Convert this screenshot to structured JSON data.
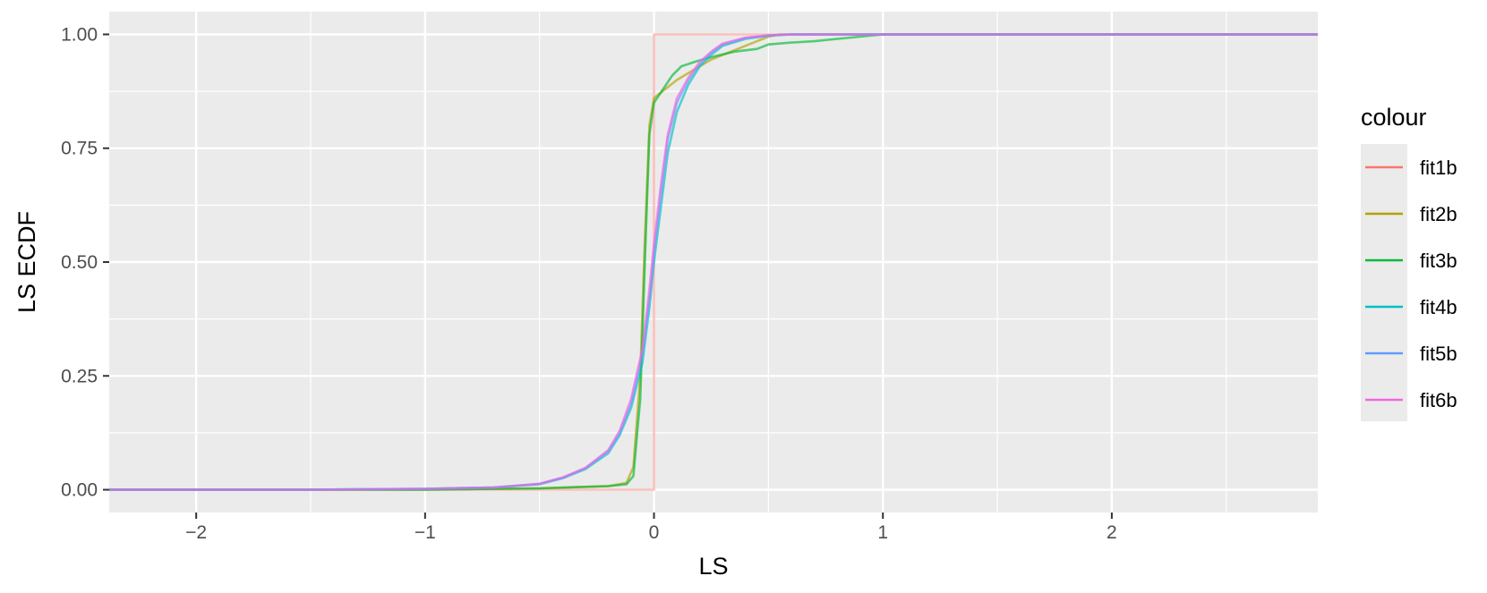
{
  "chart_data": {
    "type": "line",
    "title": "",
    "xlabel": "LS",
    "ylabel": "LS ECDF",
    "xlim": [
      -2.38,
      2.9
    ],
    "ylim": [
      -0.05,
      1.05
    ],
    "x_ticks": [
      -2,
      -1,
      0,
      1,
      2
    ],
    "x_tick_labels": [
      "−2",
      "−1",
      "0",
      "1",
      "2"
    ],
    "y_ticks": [
      0,
      0.25,
      0.5,
      0.75,
      1
    ],
    "y_tick_labels": [
      "0.00",
      "0.25",
      "0.50",
      "0.75",
      "1.00"
    ],
    "grid": true,
    "legend": {
      "title": "colour",
      "position": "right"
    },
    "series": [
      {
        "name": "fit1b",
        "color": "#F8766D",
        "step": true,
        "points": [
          [
            -2.38,
            0
          ],
          [
            0.0,
            0
          ],
          [
            0.0,
            0.8
          ],
          [
            0.0,
            1.0
          ],
          [
            2.9,
            1.0
          ]
        ]
      },
      {
        "name": "fit2b",
        "color": "#B79F00",
        "step": false,
        "points": [
          [
            -2.38,
            0
          ],
          [
            -1.0,
            0.0
          ],
          [
            -0.5,
            0.003
          ],
          [
            -0.2,
            0.008
          ],
          [
            -0.12,
            0.015
          ],
          [
            -0.09,
            0.05
          ],
          [
            -0.06,
            0.25
          ],
          [
            -0.04,
            0.55
          ],
          [
            -0.02,
            0.8
          ],
          [
            0.0,
            0.86
          ],
          [
            0.05,
            0.88
          ],
          [
            0.1,
            0.9
          ],
          [
            0.15,
            0.915
          ],
          [
            0.2,
            0.93
          ],
          [
            0.25,
            0.945
          ],
          [
            0.3,
            0.955
          ],
          [
            0.35,
            0.965
          ],
          [
            0.4,
            0.975
          ],
          [
            0.45,
            0.985
          ],
          [
            0.5,
            0.995
          ],
          [
            0.55,
            1.0
          ],
          [
            2.9,
            1.0
          ]
        ]
      },
      {
        "name": "fit3b",
        "color": "#00BA38",
        "step": false,
        "points": [
          [
            -2.38,
            0
          ],
          [
            -1.0,
            0.0
          ],
          [
            -0.5,
            0.003
          ],
          [
            -0.2,
            0.008
          ],
          [
            -0.12,
            0.012
          ],
          [
            -0.09,
            0.03
          ],
          [
            -0.06,
            0.2
          ],
          [
            -0.04,
            0.5
          ],
          [
            -0.02,
            0.78
          ],
          [
            0.0,
            0.85
          ],
          [
            0.04,
            0.88
          ],
          [
            0.08,
            0.91
          ],
          [
            0.12,
            0.93
          ],
          [
            0.18,
            0.94
          ],
          [
            0.25,
            0.95
          ],
          [
            0.35,
            0.962
          ],
          [
            0.45,
            0.968
          ],
          [
            0.5,
            0.978
          ],
          [
            0.6,
            0.982
          ],
          [
            0.7,
            0.985
          ],
          [
            0.8,
            0.99
          ],
          [
            0.9,
            0.995
          ],
          [
            1.0,
            1.0
          ],
          [
            2.9,
            1.0
          ]
        ]
      },
      {
        "name": "fit4b",
        "color": "#00BFC4",
        "step": false,
        "points": [
          [
            -2.38,
            0
          ],
          [
            -1.5,
            0.0
          ],
          [
            -1.0,
            0.002
          ],
          [
            -0.7,
            0.005
          ],
          [
            -0.5,
            0.012
          ],
          [
            -0.4,
            0.025
          ],
          [
            -0.3,
            0.045
          ],
          [
            -0.2,
            0.08
          ],
          [
            -0.15,
            0.12
          ],
          [
            -0.1,
            0.18
          ],
          [
            -0.05,
            0.28
          ],
          [
            -0.02,
            0.4
          ],
          [
            0.0,
            0.5
          ],
          [
            0.03,
            0.62
          ],
          [
            0.06,
            0.74
          ],
          [
            0.1,
            0.83
          ],
          [
            0.15,
            0.89
          ],
          [
            0.2,
            0.93
          ],
          [
            0.25,
            0.955
          ],
          [
            0.3,
            0.975
          ],
          [
            0.4,
            0.99
          ],
          [
            0.5,
            0.997
          ],
          [
            0.6,
            1.0
          ],
          [
            2.9,
            1.0
          ]
        ]
      },
      {
        "name": "fit5b",
        "color": "#619CFF",
        "step": false,
        "points": [
          [
            -2.38,
            0
          ],
          [
            -1.5,
            0.0
          ],
          [
            -1.0,
            0.002
          ],
          [
            -0.7,
            0.005
          ],
          [
            -0.5,
            0.013
          ],
          [
            -0.4,
            0.026
          ],
          [
            -0.3,
            0.047
          ],
          [
            -0.2,
            0.085
          ],
          [
            -0.15,
            0.125
          ],
          [
            -0.1,
            0.19
          ],
          [
            -0.05,
            0.3
          ],
          [
            -0.02,
            0.42
          ],
          [
            0.0,
            0.52
          ],
          [
            0.03,
            0.65
          ],
          [
            0.06,
            0.77
          ],
          [
            0.1,
            0.85
          ],
          [
            0.15,
            0.9
          ],
          [
            0.2,
            0.935
          ],
          [
            0.25,
            0.96
          ],
          [
            0.3,
            0.978
          ],
          [
            0.4,
            0.992
          ],
          [
            0.5,
            0.998
          ],
          [
            0.6,
            1.0
          ],
          [
            2.9,
            1.0
          ]
        ]
      },
      {
        "name": "fit6b",
        "color": "#F564E3",
        "step": false,
        "points": [
          [
            -2.38,
            0
          ],
          [
            -1.5,
            0.0
          ],
          [
            -1.0,
            0.002
          ],
          [
            -0.7,
            0.005
          ],
          [
            -0.5,
            0.013
          ],
          [
            -0.4,
            0.027
          ],
          [
            -0.3,
            0.048
          ],
          [
            -0.2,
            0.087
          ],
          [
            -0.15,
            0.13
          ],
          [
            -0.1,
            0.2
          ],
          [
            -0.05,
            0.31
          ],
          [
            -0.02,
            0.44
          ],
          [
            0.0,
            0.54
          ],
          [
            0.03,
            0.67
          ],
          [
            0.06,
            0.78
          ],
          [
            0.1,
            0.86
          ],
          [
            0.15,
            0.905
          ],
          [
            0.2,
            0.94
          ],
          [
            0.25,
            0.962
          ],
          [
            0.3,
            0.98
          ],
          [
            0.4,
            0.993
          ],
          [
            0.5,
            0.998
          ],
          [
            0.6,
            1.0
          ],
          [
            2.9,
            1.0
          ]
        ]
      }
    ]
  }
}
